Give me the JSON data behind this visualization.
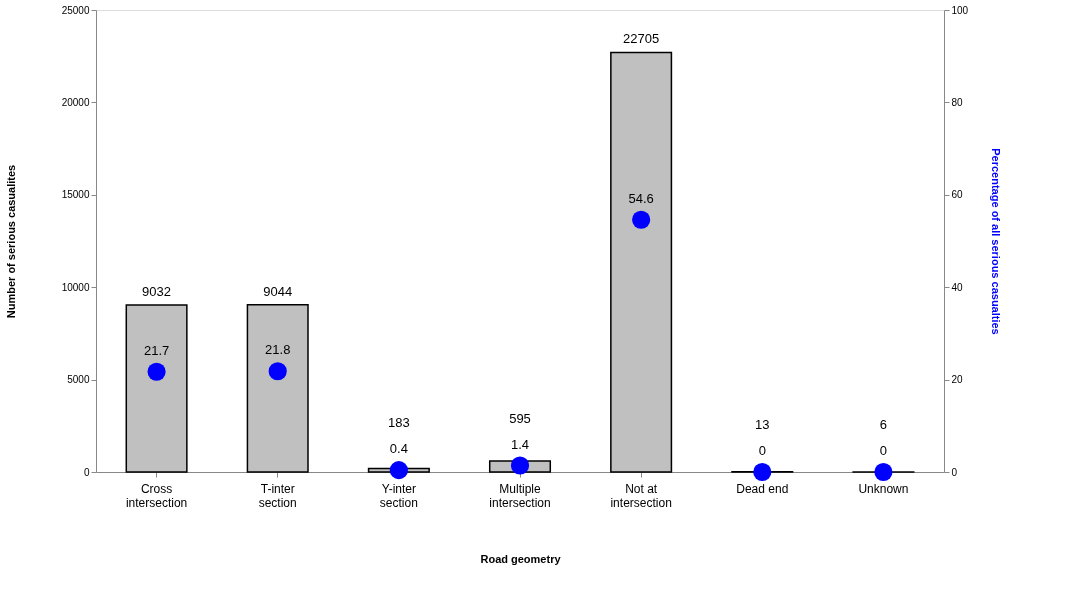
{
  "chart_data": {
    "type": "bar",
    "xlabel": "Road geometry",
    "ylabel": "Number of serious casualites",
    "y2label": "Percentage of all serious casualties",
    "categories": [
      "Cross\nintersection",
      "T-inter\nsection",
      "Y-inter\nsection",
      "Multiple\nintersection",
      "Not at\nintersection",
      "Dead end",
      "Unknown"
    ],
    "series": [
      {
        "color": "#c0c0c0",
        "values": [
          9032,
          9044,
          183,
          595,
          22705,
          13,
          6
        ]
      },
      {
        "type": "scatter",
        "axis": "y2",
        "color": "#0000ff",
        "values": [
          21.7,
          21.8,
          0.4,
          1.4,
          54.6,
          0,
          0
        ]
      }
    ],
    "ylim": [
      0,
      25000
    ],
    "yticks": [
      0,
      5000,
      10000,
      15000,
      20000,
      25000
    ],
    "y2lim": [
      0,
      100
    ],
    "y2ticks": [
      0,
      20,
      40,
      60,
      80,
      100
    ],
    "marker": "circle",
    "data_labels": true,
    "grid": false
  }
}
